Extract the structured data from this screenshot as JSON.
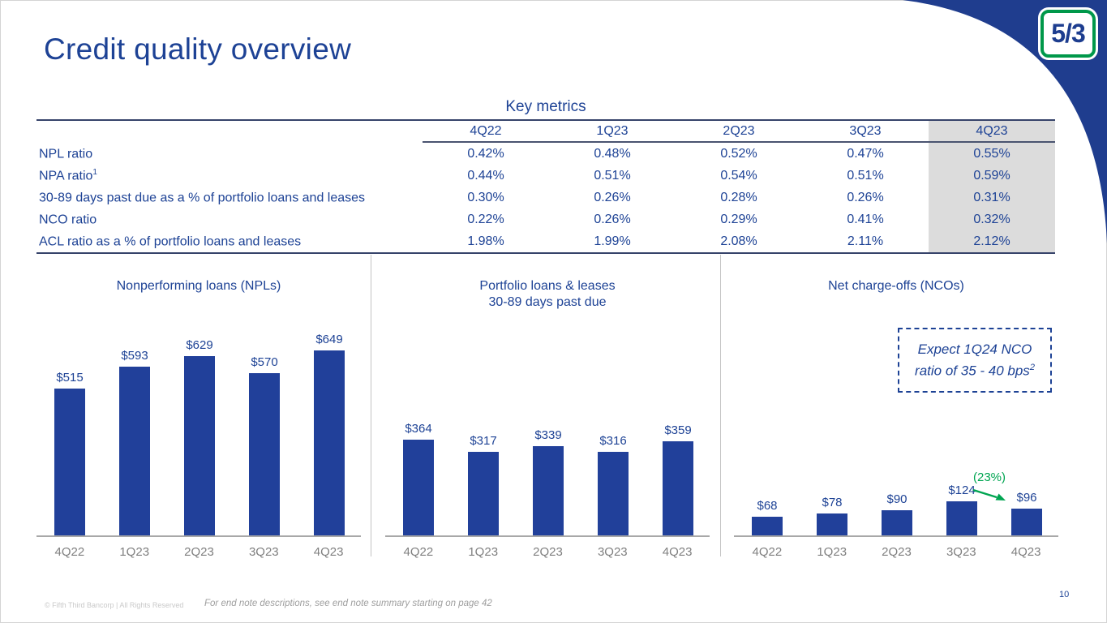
{
  "slide": {
    "title": "Credit quality overview",
    "page_number": "10"
  },
  "logo": {
    "text": "5/3"
  },
  "footer": {
    "copyright": "© Fifth Third Bancorp | All Rights Reserved",
    "endnote": "For end note descriptions, see end note summary starting on page 42"
  },
  "colors": {
    "brand_blue": "#1d4295",
    "bar_blue": "#21409a",
    "corner_blue": "#1f3d8e",
    "logo_green": "#00984a",
    "highlight_gray": "#dcdcdc",
    "annotation_green": "#00a551",
    "axis_gray": "#a8a8a8",
    "xlabel_gray": "#7f7f7f"
  },
  "key_metrics": {
    "title": "Key metrics",
    "columns": [
      "4Q22",
      "1Q23",
      "2Q23",
      "3Q23",
      "4Q23"
    ],
    "rows": [
      {
        "label": "NPL ratio",
        "values": [
          "0.42%",
          "0.48%",
          "0.52%",
          "0.47%",
          "0.55%"
        ]
      },
      {
        "label": "NPA ratio",
        "sup": "1",
        "values": [
          "0.44%",
          "0.51%",
          "0.54%",
          "0.51%",
          "0.59%"
        ]
      },
      {
        "label": "30-89 days past due as a % of portfolio loans and leases",
        "values": [
          "0.30%",
          "0.26%",
          "0.28%",
          "0.26%",
          "0.31%"
        ]
      },
      {
        "label": "NCO ratio",
        "values": [
          "0.22%",
          "0.26%",
          "0.29%",
          "0.41%",
          "0.32%"
        ]
      },
      {
        "label": "ACL ratio as a % of portfolio loans and leases",
        "values": [
          "1.98%",
          "1.99%",
          "2.08%",
          "2.11%",
          "2.12%"
        ]
      }
    ]
  },
  "chart_data": [
    {
      "type": "bar",
      "title_lines": [
        "Nonperforming loans (NPLs)"
      ],
      "categories": [
        "4Q22",
        "1Q23",
        "2Q23",
        "3Q23",
        "4Q23"
      ],
      "values": [
        515,
        593,
        629,
        570,
        649
      ],
      "labels": [
        "$515",
        "$593",
        "$629",
        "$570",
        "$649"
      ],
      "ylim": [
        0,
        660
      ],
      "grid": false,
      "legend": "none"
    },
    {
      "type": "bar",
      "title_lines": [
        "Portfolio loans & leases",
        "30-89 days past due"
      ],
      "categories": [
        "4Q22",
        "1Q23",
        "2Q23",
        "3Q23",
        "4Q23"
      ],
      "values": [
        364,
        317,
        339,
        316,
        359
      ],
      "labels": [
        "$364",
        "$317",
        "$339",
        "$316",
        "$359"
      ],
      "ylim": [
        0,
        715
      ],
      "grid": false,
      "legend": "none"
    },
    {
      "type": "bar",
      "title_lines": [
        "Net charge-offs (NCOs)"
      ],
      "categories": [
        "4Q22",
        "1Q23",
        "2Q23",
        "3Q23",
        "4Q23"
      ],
      "values": [
        68,
        78,
        90,
        124,
        96
      ],
      "labels": [
        "$68",
        "$78",
        "$90",
        "$124",
        "$96"
      ],
      "ylim": [
        0,
        680
      ],
      "grid": false,
      "legend": "none",
      "annotation": {
        "text": "(23%)",
        "from": "3Q23",
        "to": "4Q23"
      }
    }
  ],
  "callout": {
    "line1": "Expect 1Q24 NCO",
    "line2": "ratio of 35 - 40 bps",
    "sup": "2"
  }
}
